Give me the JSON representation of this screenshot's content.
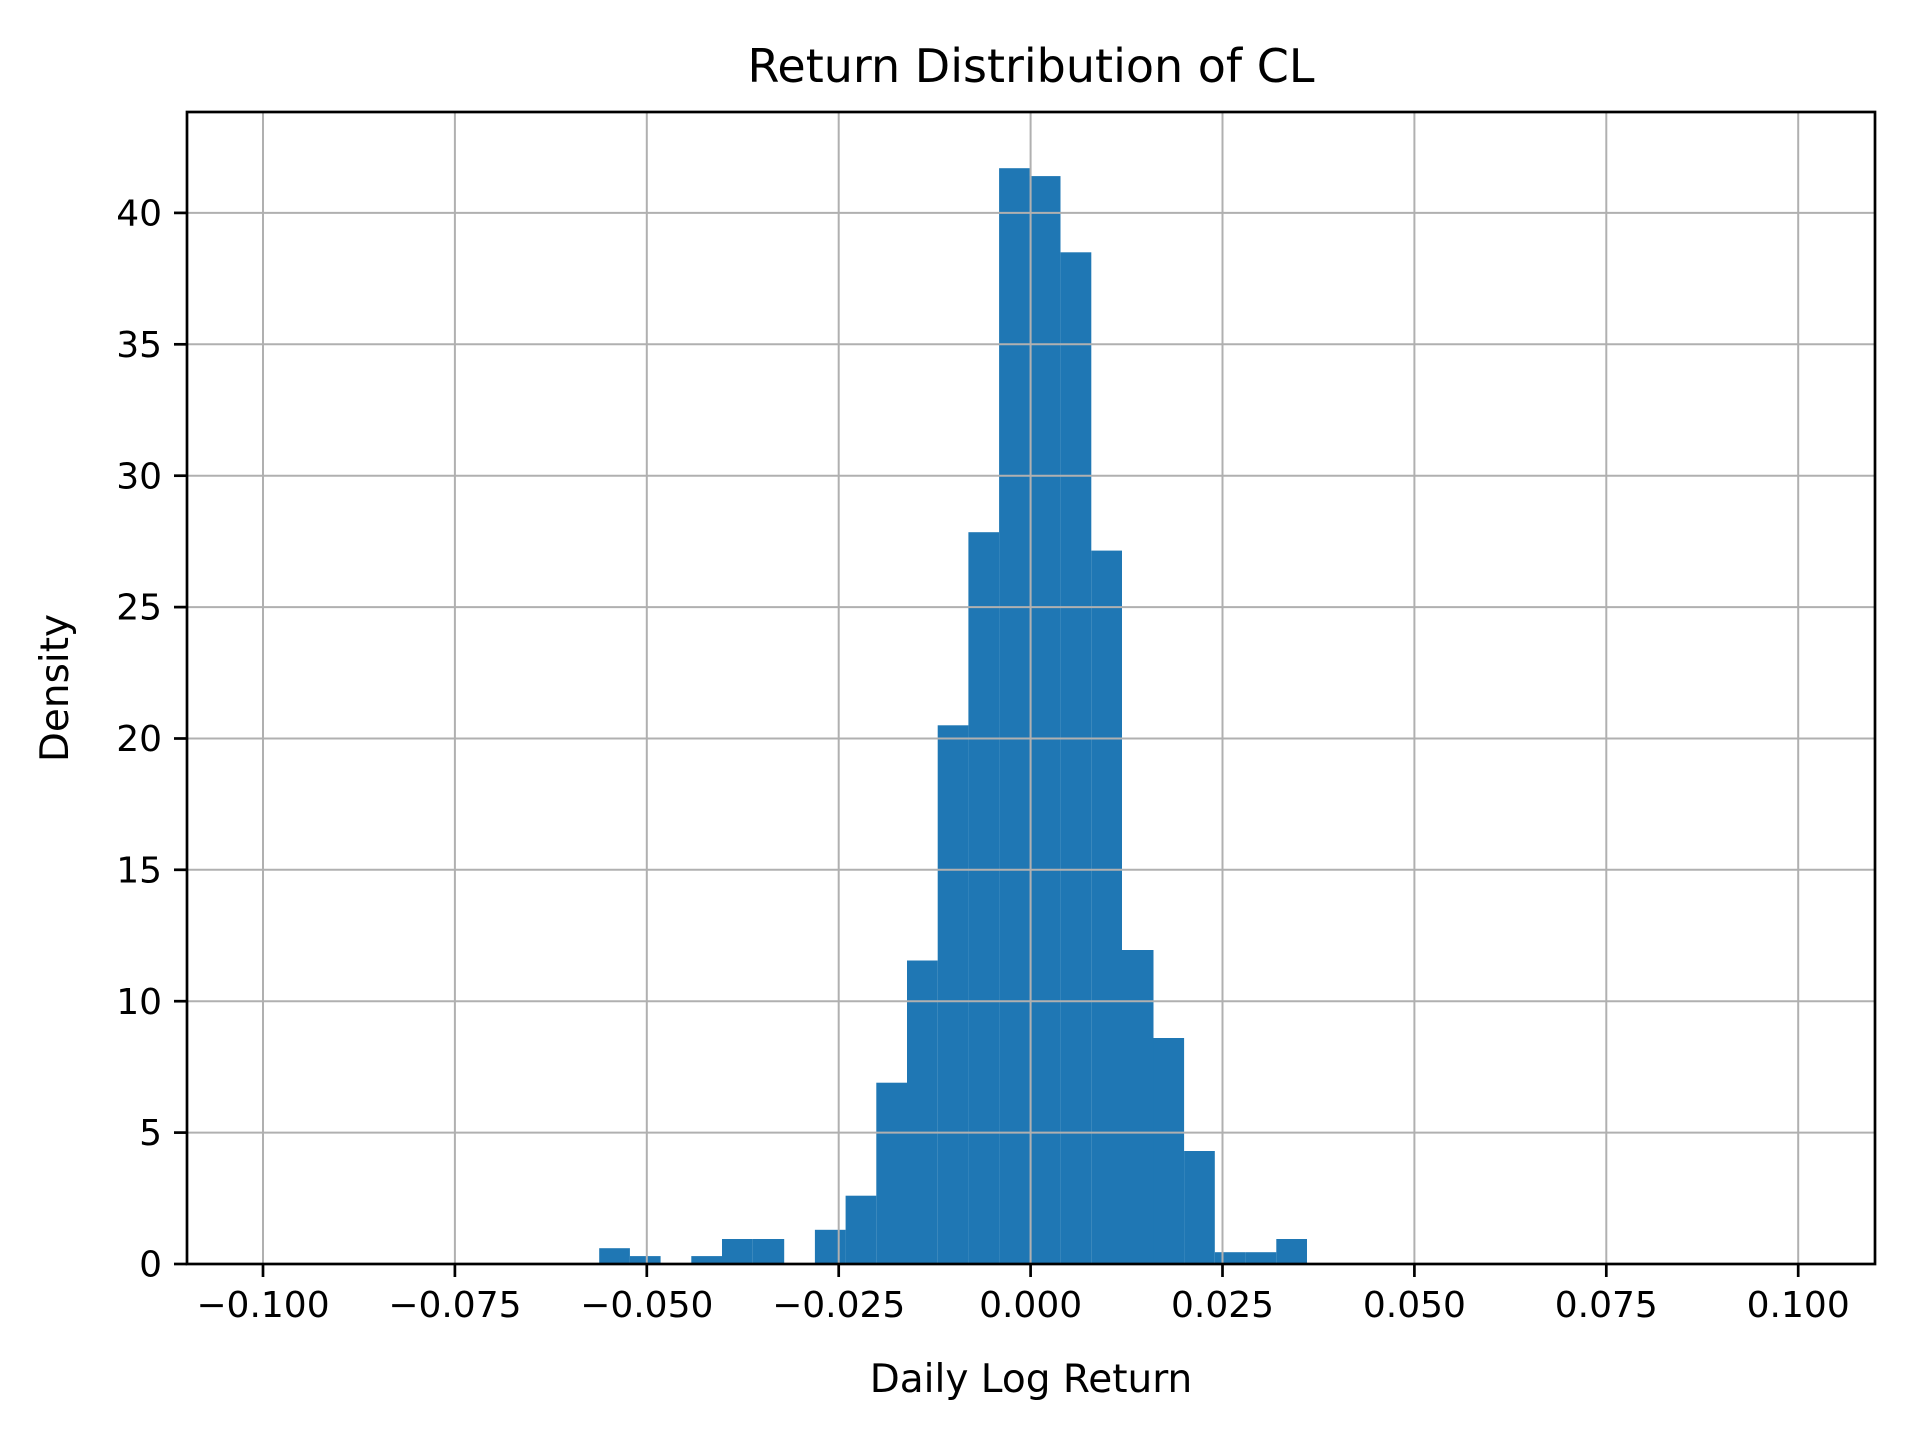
{
  "chart_data": {
    "type": "bar",
    "subtype": "histogram",
    "title": "Return Distribution of CL",
    "xlabel": "Daily Log Return",
    "ylabel": "Density",
    "legend": null,
    "grid": true,
    "grid_above_bars": true,
    "xlim": [
      -0.1099,
      0.11
    ],
    "ylim": [
      0,
      43.84
    ],
    "xticks": [
      -0.1,
      -0.075,
      -0.05,
      -0.025,
      0.0,
      0.025,
      0.05,
      0.075,
      0.1
    ],
    "xtick_labels": [
      "−0.100",
      "−0.075",
      "−0.050",
      "−0.025",
      "0.000",
      "0.025",
      "0.050",
      "0.075",
      "0.100"
    ],
    "yticks": [
      0,
      5,
      10,
      15,
      20,
      25,
      30,
      35,
      40
    ],
    "ytick_labels": [
      "0",
      "5",
      "10",
      "15",
      "20",
      "25",
      "30",
      "35",
      "40"
    ],
    "bin_edges": [
      -0.0562,
      -0.0522,
      -0.0482,
      -0.0442,
      -0.0402,
      -0.0362,
      -0.0321,
      -0.0281,
      -0.0241,
      -0.0201,
      -0.0161,
      -0.0121,
      -0.0081,
      -0.0041,
      -0.0001,
      0.0039,
      0.0079,
      0.0119,
      0.016,
      0.02,
      0.024,
      0.028,
      0.032,
      0.036
    ],
    "densities": [
      0.6,
      0.3,
      0,
      0.3,
      0.95,
      0.95,
      0,
      1.3,
      2.6,
      6.9,
      11.55,
      20.5,
      27.85,
      41.7,
      41.4,
      38.5,
      27.15,
      11.95,
      8.6,
      4.3,
      0.45,
      0.45,
      0.95
    ],
    "colors": {
      "bar": "#1f77b4",
      "grid": "#b0b0b0",
      "spine": "#000000",
      "text": "#000000",
      "background": "#ffffff"
    }
  }
}
